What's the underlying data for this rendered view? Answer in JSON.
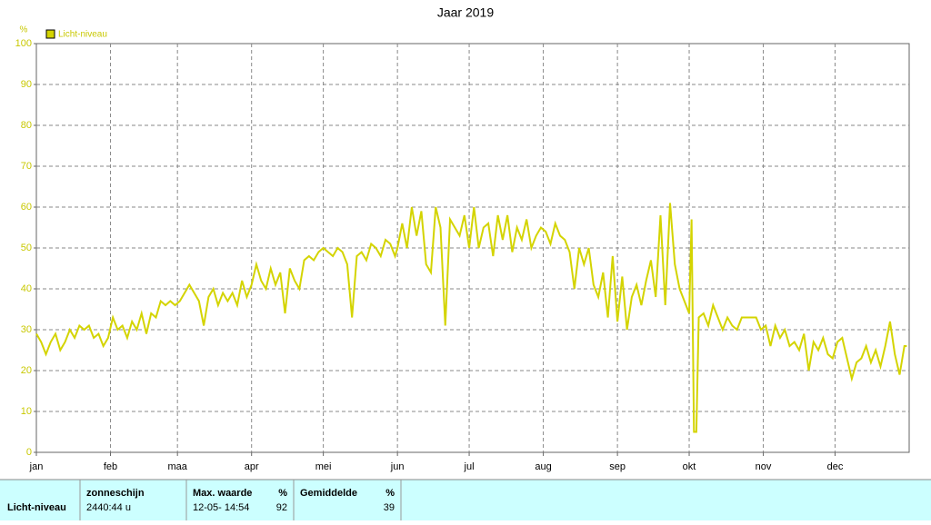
{
  "chart_data": {
    "type": "line",
    "title": "Jaar 2019",
    "y_unit": "%",
    "x": [
      1,
      3,
      5,
      7,
      9,
      11,
      13,
      15,
      17,
      19,
      21,
      23,
      25,
      27,
      29,
      31,
      33,
      35,
      37,
      39,
      41,
      43,
      45,
      47,
      49,
      51,
      53,
      55,
      57,
      59,
      61,
      63,
      65,
      67,
      69,
      71,
      73,
      75,
      77,
      79,
      81,
      83,
      85,
      87,
      89,
      91,
      93,
      95,
      97,
      99,
      101,
      103,
      105,
      107,
      109,
      111,
      113,
      115,
      117,
      119,
      121,
      123,
      125,
      127,
      129,
      131,
      133,
      135,
      137,
      139,
      141,
      143,
      145,
      147,
      149,
      151,
      152,
      154,
      156,
      158,
      160,
      162,
      164,
      166,
      168,
      170,
      172,
      174,
      176,
      178,
      180,
      182,
      184,
      186,
      188,
      190,
      192,
      194,
      196,
      198,
      200,
      202,
      204,
      206,
      208,
      210,
      212,
      214,
      216,
      218,
      220,
      222,
      224,
      226,
      228,
      230,
      232,
      234,
      236,
      238,
      240,
      242,
      244,
      246,
      248,
      250,
      252,
      254,
      256,
      258,
      260,
      262,
      264,
      266,
      268,
      270,
      272,
      274,
      275,
      276,
      277,
      278,
      280,
      282,
      284,
      286,
      288,
      290,
      292,
      294,
      296,
      298,
      300,
      302,
      304,
      306,
      308,
      310,
      312,
      314,
      316,
      318,
      320,
      322,
      324,
      326,
      328,
      330,
      332,
      334,
      336,
      338,
      340,
      342,
      344,
      346,
      348,
      350,
      352,
      354,
      356,
      358,
      360,
      362,
      364,
      365
    ],
    "series": [
      {
        "name": "Licht-niveau",
        "color": "#d4d400",
        "values": [
          29,
          27,
          24,
          27,
          29,
          25,
          27,
          30,
          28,
          31,
          30,
          31,
          28,
          29,
          26,
          28,
          33,
          30,
          31,
          28,
          32,
          30,
          34,
          29,
          34,
          33,
          37,
          36,
          37,
          36,
          37,
          39,
          41,
          39,
          37,
          31,
          38,
          40,
          36,
          39,
          37,
          39,
          36,
          42,
          38,
          41,
          46,
          42,
          40,
          45,
          41,
          44,
          34,
          45,
          42,
          40,
          47,
          48,
          47,
          49,
          50,
          49,
          48,
          50,
          49,
          46,
          33,
          48,
          49,
          47,
          51,
          50,
          48,
          52,
          51,
          48,
          50,
          56,
          50,
          60,
          53,
          59,
          46,
          44,
          60,
          55,
          31,
          57,
          55,
          53,
          58,
          50,
          60,
          50,
          55,
          56,
          48,
          58,
          52,
          58,
          49,
          55,
          52,
          57,
          50,
          53,
          55,
          54,
          51,
          56,
          53,
          52,
          49,
          40,
          50,
          46,
          50,
          41,
          38,
          44,
          33,
          48,
          32,
          43,
          30,
          38,
          41,
          36,
          42,
          47,
          38,
          58,
          36,
          61,
          46,
          40,
          37,
          34,
          57,
          5,
          5,
          33,
          34,
          31,
          36,
          33,
          30,
          33,
          31,
          30,
          33,
          33,
          33,
          33,
          30,
          31,
          26,
          31,
          28,
          30,
          26,
          27,
          25,
          29,
          20,
          27,
          25,
          28,
          24,
          23,
          27,
          28,
          23,
          18,
          22,
          23,
          26,
          22,
          25,
          21,
          26,
          32,
          24,
          19,
          26,
          26
        ]
      }
    ],
    "xlim": [
      1,
      366
    ],
    "xticks": [
      {
        "value": 1,
        "label": "jan"
      },
      {
        "value": 32,
        "label": "feb"
      },
      {
        "value": 60,
        "label": "maa"
      },
      {
        "value": 91,
        "label": "apr"
      },
      {
        "value": 121,
        "label": "mei"
      },
      {
        "value": 152,
        "label": "jun"
      },
      {
        "value": 182,
        "label": "jul"
      },
      {
        "value": 213,
        "label": "aug"
      },
      {
        "value": 244,
        "label": "sep"
      },
      {
        "value": 274,
        "label": "okt"
      },
      {
        "value": 305,
        "label": "nov"
      },
      {
        "value": 335,
        "label": "dec"
      }
    ],
    "ylim": [
      0,
      100
    ],
    "yticks": [
      0,
      10,
      20,
      30,
      40,
      50,
      60,
      70,
      80,
      90,
      100
    ],
    "grid": true
  },
  "table": {
    "columns": [
      "zonneschijn",
      "Max. waarde",
      "%",
      "Gemiddelde",
      "%"
    ],
    "row": {
      "label": "Licht-niveau",
      "cells": [
        "2440:44 u",
        "12-05- 14:54",
        "92",
        "39"
      ]
    }
  }
}
